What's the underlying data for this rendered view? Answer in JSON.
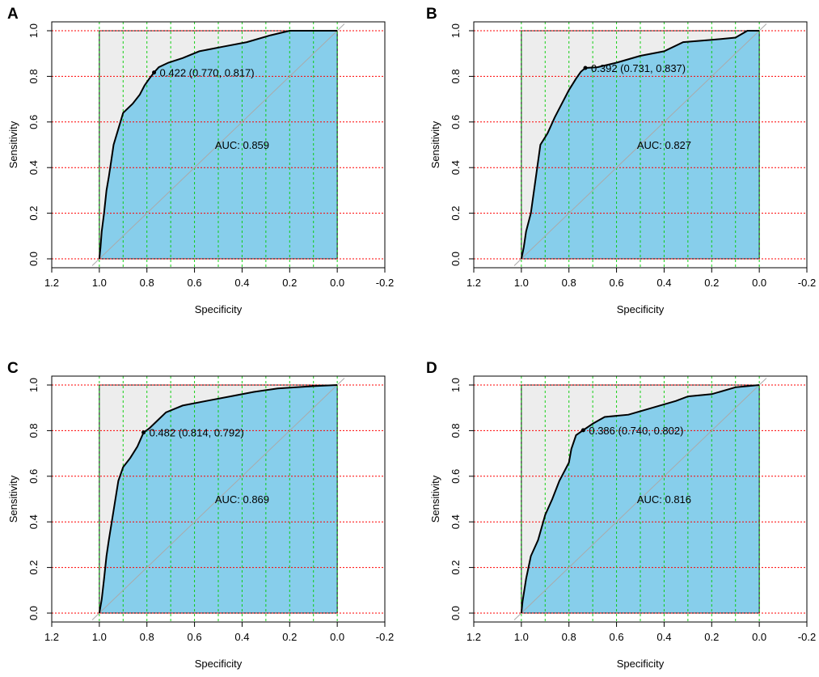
{
  "figure": {
    "panels": [
      "A",
      "B",
      "C",
      "D"
    ]
  },
  "colors": {
    "auc_fill": "#87ceeb",
    "outside_fill": "#ededed",
    "grid_h": "#ff0000",
    "grid_v": "#00cc00",
    "diagonal": "#aaaaaa",
    "curve": "#000000"
  },
  "chart_data": [
    {
      "panel": "A",
      "type": "line",
      "title": "",
      "xlabel": "Specificity",
      "ylabel": "Sensitivity",
      "xlim": [
        1.2,
        -0.2
      ],
      "ylim": [
        0,
        1
      ],
      "x_ticks": [
        "1.2",
        "1.0",
        "0.8",
        "0.6",
        "0.4",
        "0.2",
        "0.0",
        "-0.2"
      ],
      "y_ticks": [
        "0.0",
        "0.2",
        "0.4",
        "0.6",
        "0.8",
        "1.0"
      ],
      "auc_label": "AUC: 0.859",
      "threshold_label": "0.422 (0.770, 0.817)",
      "best_point": {
        "specificity": 0.77,
        "sensitivity": 0.817
      },
      "series": [
        {
          "name": "ROC",
          "points": [
            [
              1.0,
              0
            ],
            [
              0.995,
              0.05
            ],
            [
              0.99,
              0.12
            ],
            [
              0.98,
              0.2
            ],
            [
              0.97,
              0.3
            ],
            [
              0.96,
              0.36
            ],
            [
              0.95,
              0.43
            ],
            [
              0.94,
              0.5
            ],
            [
              0.92,
              0.57
            ],
            [
              0.9,
              0.64
            ],
            [
              0.86,
              0.68
            ],
            [
              0.83,
              0.72
            ],
            [
              0.81,
              0.76
            ],
            [
              0.79,
              0.79
            ],
            [
              0.77,
              0.817
            ],
            [
              0.75,
              0.84
            ],
            [
              0.71,
              0.86
            ],
            [
              0.65,
              0.88
            ],
            [
              0.58,
              0.91
            ],
            [
              0.48,
              0.93
            ],
            [
              0.38,
              0.95
            ],
            [
              0.28,
              0.98
            ],
            [
              0.2,
              1.0
            ],
            [
              0.0,
              1.0
            ]
          ]
        }
      ]
    },
    {
      "panel": "B",
      "type": "line",
      "title": "",
      "xlabel": "Specificity",
      "ylabel": "Sensitivity",
      "xlim": [
        1.2,
        -0.2
      ],
      "ylim": [
        0,
        1
      ],
      "x_ticks": [
        "1.2",
        "1.0",
        "0.8",
        "0.6",
        "0.4",
        "0.2",
        "0.0",
        "-0.2"
      ],
      "y_ticks": [
        "0.0",
        "0.2",
        "0.4",
        "0.6",
        "0.8",
        "1.0"
      ],
      "auc_label": "AUC: 0.827",
      "threshold_label": "0.392 (0.731, 0.837)",
      "best_point": {
        "specificity": 0.731,
        "sensitivity": 0.837
      },
      "series": [
        {
          "name": "ROC",
          "points": [
            [
              1.0,
              0
            ],
            [
              0.99,
              0.05
            ],
            [
              0.98,
              0.12
            ],
            [
              0.96,
              0.2
            ],
            [
              0.94,
              0.35
            ],
            [
              0.92,
              0.5
            ],
            [
              0.89,
              0.55
            ],
            [
              0.86,
              0.62
            ],
            [
              0.83,
              0.68
            ],
            [
              0.8,
              0.74
            ],
            [
              0.77,
              0.79
            ],
            [
              0.75,
              0.82
            ],
            [
              0.731,
              0.837
            ],
            [
              0.68,
              0.84
            ],
            [
              0.6,
              0.86
            ],
            [
              0.5,
              0.89
            ],
            [
              0.4,
              0.91
            ],
            [
              0.32,
              0.95
            ],
            [
              0.2,
              0.96
            ],
            [
              0.1,
              0.97
            ],
            [
              0.05,
              1.0
            ],
            [
              0.0,
              1.0
            ]
          ]
        }
      ]
    },
    {
      "panel": "C",
      "type": "line",
      "title": "",
      "xlabel": "Specificity",
      "ylabel": "Sensitivity",
      "xlim": [
        1.2,
        -0.2
      ],
      "ylim": [
        0,
        1
      ],
      "x_ticks": [
        "1.2",
        "1.0",
        "0.8",
        "0.6",
        "0.4",
        "0.2",
        "0.0",
        "-0.2"
      ],
      "y_ticks": [
        "0.0",
        "0.2",
        "0.4",
        "0.6",
        "0.8",
        "1.0"
      ],
      "auc_label": "AUC: 0.869",
      "threshold_label": "0.482 (0.814, 0.792)",
      "best_point": {
        "specificity": 0.814,
        "sensitivity": 0.792
      },
      "series": [
        {
          "name": "ROC",
          "points": [
            [
              1.0,
              0
            ],
            [
              0.99,
              0.06
            ],
            [
              0.98,
              0.15
            ],
            [
              0.97,
              0.25
            ],
            [
              0.96,
              0.32
            ],
            [
              0.94,
              0.45
            ],
            [
              0.92,
              0.58
            ],
            [
              0.9,
              0.64
            ],
            [
              0.87,
              0.68
            ],
            [
              0.84,
              0.73
            ],
            [
              0.814,
              0.792
            ],
            [
              0.79,
              0.81
            ],
            [
              0.76,
              0.84
            ],
            [
              0.72,
              0.88
            ],
            [
              0.65,
              0.91
            ],
            [
              0.55,
              0.93
            ],
            [
              0.45,
              0.95
            ],
            [
              0.35,
              0.97
            ],
            [
              0.25,
              0.985
            ],
            [
              0.1,
              0.995
            ],
            [
              0.0,
              1.0
            ]
          ]
        }
      ]
    },
    {
      "panel": "D",
      "type": "line",
      "title": "",
      "xlabel": "Specificity",
      "ylabel": "Sensitivity",
      "xlim": [
        1.2,
        -0.2
      ],
      "ylim": [
        0,
        1
      ],
      "x_ticks": [
        "1.2",
        "1.0",
        "0.8",
        "0.6",
        "0.4",
        "0.2",
        "0.0",
        "-0.2"
      ],
      "y_ticks": [
        "0.0",
        "0.2",
        "0.4",
        "0.6",
        "0.8",
        "1.0"
      ],
      "auc_label": "AUC: 0.816",
      "threshold_label": "0.386 (0.740, 0.802)",
      "best_point": {
        "specificity": 0.74,
        "sensitivity": 0.802
      },
      "series": [
        {
          "name": "ROC",
          "points": [
            [
              1.0,
              0
            ],
            [
              0.995,
              0.05
            ],
            [
              0.98,
              0.15
            ],
            [
              0.96,
              0.25
            ],
            [
              0.93,
              0.32
            ],
            [
              0.9,
              0.43
            ],
            [
              0.87,
              0.5
            ],
            [
              0.84,
              0.58
            ],
            [
              0.82,
              0.62
            ],
            [
              0.8,
              0.66
            ],
            [
              0.79,
              0.72
            ],
            [
              0.77,
              0.78
            ],
            [
              0.74,
              0.802
            ],
            [
              0.7,
              0.83
            ],
            [
              0.65,
              0.86
            ],
            [
              0.55,
              0.87
            ],
            [
              0.45,
              0.9
            ],
            [
              0.35,
              0.93
            ],
            [
              0.3,
              0.95
            ],
            [
              0.2,
              0.96
            ],
            [
              0.1,
              0.99
            ],
            [
              0.0,
              1.0
            ]
          ]
        }
      ]
    }
  ]
}
